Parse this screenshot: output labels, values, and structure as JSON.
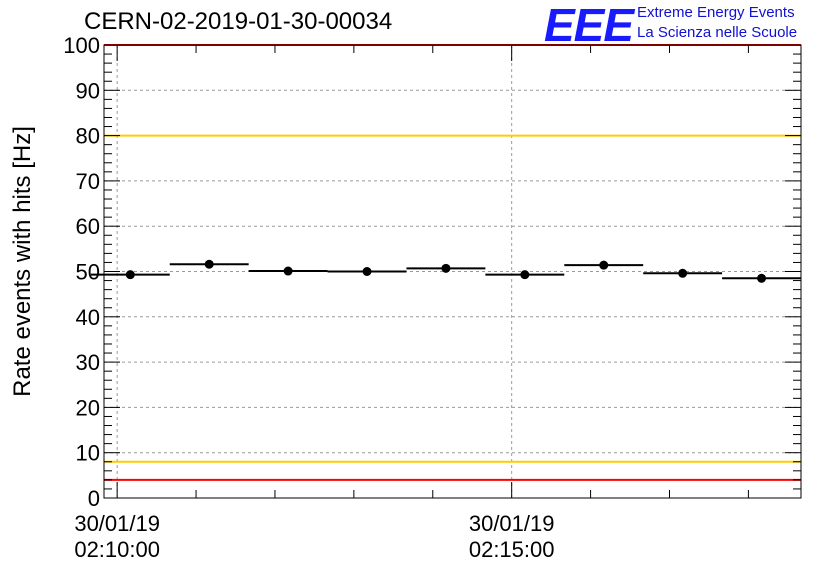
{
  "header": {
    "run_title": "CERN-02-2019-01-30-00034",
    "logo_text": "EEE",
    "logo_line1": "Extreme Energy Events",
    "logo_line2": "La Scienza nelle Scuole"
  },
  "colors": {
    "logo": "#1a1aff",
    "red_limit": "#ff0000",
    "yellow_limit": "#ffcc00",
    "grid": "#9a9a9a",
    "data": "#000000"
  },
  "chart_data": {
    "type": "scatter",
    "title": "CERN-02-2019-01-30-00034",
    "xlabel": "",
    "ylabel": "Rate events with hits [Hz]",
    "xlim_seconds": [
      -10,
      520
    ],
    "ylim": [
      0,
      100
    ],
    "y_ticks": [
      0,
      10,
      20,
      30,
      40,
      50,
      60,
      70,
      80,
      90,
      100
    ],
    "x_ticks": [
      {
        "t": 0,
        "date": "30/01/19",
        "time": "02:10:00"
      },
      {
        "t": 300,
        "date": "30/01/19",
        "time": "02:15:00"
      }
    ],
    "x_unit": "seconds since 30/01/19 02:10:00",
    "grid": true,
    "series": [
      {
        "name": "rate",
        "bin_width_s": 60,
        "x": [
          10,
          70,
          130,
          190,
          250,
          310,
          370,
          430,
          490
        ],
        "values": [
          49.3,
          51.6,
          50.1,
          50.0,
          50.7,
          49.3,
          51.4,
          49.6,
          48.5
        ]
      }
    ],
    "reference_lines": [
      {
        "name": "upper-red-limit",
        "y": 100,
        "color": "#ff0000"
      },
      {
        "name": "upper-yellow-limit",
        "y": 80,
        "color": "#ffcc00"
      },
      {
        "name": "lower-yellow-limit",
        "y": 8,
        "color": "#ffcc00"
      },
      {
        "name": "lower-red-limit",
        "y": 4,
        "color": "#ff0000"
      }
    ]
  }
}
